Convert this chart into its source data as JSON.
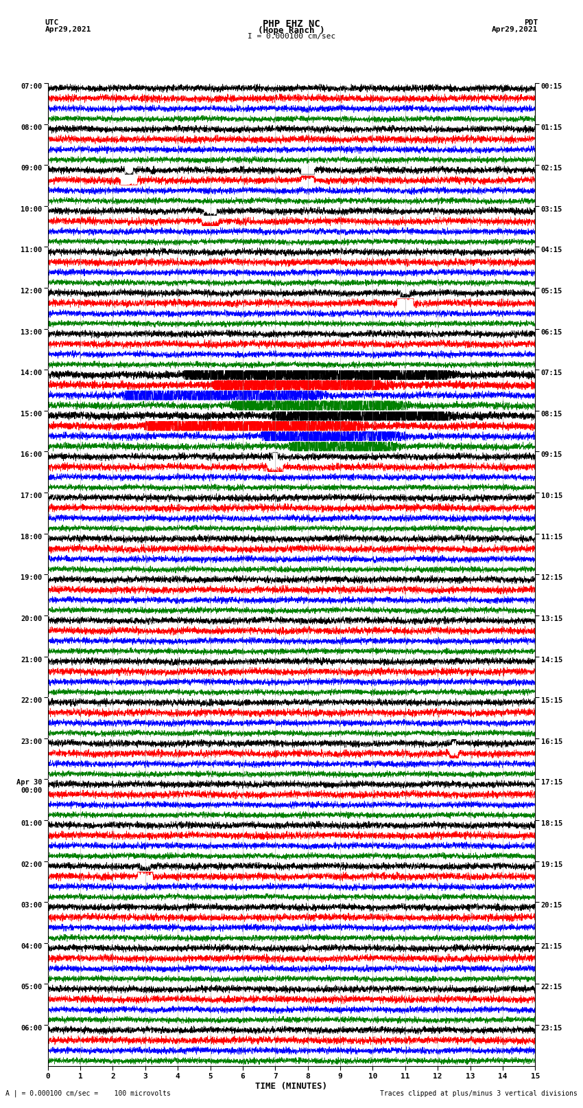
{
  "title_line1": "PHP EHZ NC",
  "title_line2": "(Hope Ranch )",
  "scale_text": "I = 0.000100 cm/sec",
  "utc_label": "UTC",
  "utc_date": "Apr29,2021",
  "pdt_label": "PDT",
  "pdt_date": "Apr29,2021",
  "xlabel": "TIME (MINUTES)",
  "footer_left": "A | = 0.000100 cm/sec =    100 microvolts",
  "footer_right": "Traces clipped at plus/minus 3 vertical divisions",
  "left_times": [
    "07:00",
    "08:00",
    "09:00",
    "10:00",
    "11:00",
    "12:00",
    "13:00",
    "14:00",
    "15:00",
    "16:00",
    "17:00",
    "18:00",
    "19:00",
    "20:00",
    "21:00",
    "22:00",
    "23:00",
    "Apr 30\n00:00",
    "01:00",
    "02:00",
    "03:00",
    "04:00",
    "05:00",
    "06:00"
  ],
  "right_times": [
    "00:15",
    "01:15",
    "02:15",
    "03:15",
    "04:15",
    "05:15",
    "06:15",
    "07:15",
    "08:15",
    "09:15",
    "10:15",
    "11:15",
    "12:15",
    "13:15",
    "14:15",
    "15:15",
    "16:15",
    "17:15",
    "18:15",
    "19:15",
    "20:15",
    "21:15",
    "22:15",
    "23:15"
  ],
  "n_rows": 24,
  "n_cols": 15,
  "trace_colors": [
    "black",
    "red",
    "blue",
    "green"
  ],
  "bg_color": "white",
  "seed": 42
}
